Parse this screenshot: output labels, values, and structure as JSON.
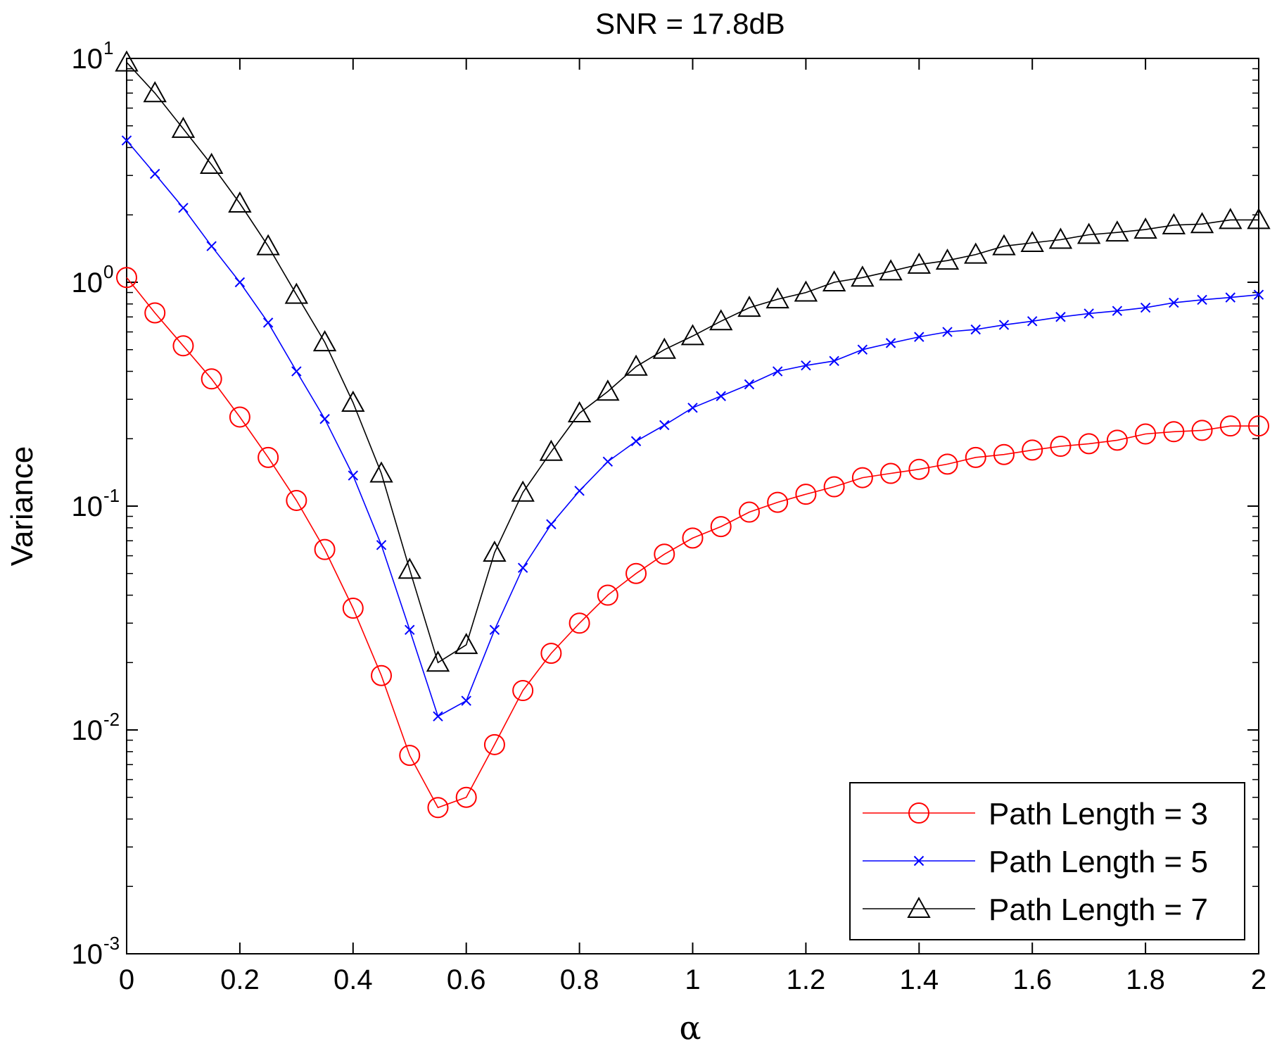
{
  "chart_data": {
    "type": "line",
    "title": "SNR = 17.8dB",
    "xlabel": "α",
    "ylabel": "Variance",
    "xlim": [
      0,
      2
    ],
    "ylim": [
      0.001,
      10
    ],
    "yscale": "log",
    "xticks": [
      "0",
      "0.2",
      "0.4",
      "0.6",
      "0.8",
      "1",
      "1.2",
      "1.4",
      "1.6",
      "1.8",
      "2"
    ],
    "yticks": [
      {
        "base": "10",
        "exp": "-3"
      },
      {
        "base": "10",
        "exp": "-2"
      },
      {
        "base": "10",
        "exp": "-1"
      },
      {
        "base": "10",
        "exp": "0"
      },
      {
        "base": "10",
        "exp": "1"
      }
    ],
    "legend_position": "bottom-right",
    "x": [
      0,
      0.05,
      0.1,
      0.15,
      0.2,
      0.25,
      0.3,
      0.35,
      0.4,
      0.45,
      0.5,
      0.55,
      0.6,
      0.65,
      0.7,
      0.75,
      0.8,
      0.85,
      0.9,
      0.95,
      1.0,
      1.05,
      1.1,
      1.15,
      1.2,
      1.25,
      1.3,
      1.35,
      1.4,
      1.45,
      1.5,
      1.55,
      1.6,
      1.65,
      1.7,
      1.75,
      1.8,
      1.85,
      1.9,
      1.95,
      2.0
    ],
    "series": [
      {
        "name": "Path Length = 3",
        "color": "#ff0000",
        "marker": "circle",
        "values": [
          1.05,
          0.73,
          0.52,
          0.37,
          0.25,
          0.165,
          0.106,
          0.064,
          0.035,
          0.0175,
          0.0077,
          0.0045,
          0.005,
          0.0086,
          0.015,
          0.022,
          0.03,
          0.04,
          0.05,
          0.061,
          0.072,
          0.081,
          0.094,
          0.104,
          0.113,
          0.122,
          0.134,
          0.14,
          0.146,
          0.154,
          0.165,
          0.17,
          0.178,
          0.185,
          0.19,
          0.197,
          0.21,
          0.215,
          0.218,
          0.228,
          0.228
        ]
      },
      {
        "name": "Path Length = 5",
        "color": "#0000ff",
        "marker": "x",
        "values": [
          4.3,
          3.05,
          2.15,
          1.45,
          1.0,
          0.66,
          0.4,
          0.245,
          0.137,
          0.067,
          0.028,
          0.0115,
          0.0135,
          0.028,
          0.053,
          0.083,
          0.117,
          0.158,
          0.195,
          0.23,
          0.275,
          0.31,
          0.35,
          0.4,
          0.425,
          0.445,
          0.5,
          0.535,
          0.57,
          0.6,
          0.615,
          0.645,
          0.67,
          0.7,
          0.725,
          0.745,
          0.77,
          0.81,
          0.835,
          0.855,
          0.88
        ]
      },
      {
        "name": "Path Length = 7",
        "color": "#000000",
        "marker": "triangle",
        "values": [
          9.6,
          7.0,
          4.85,
          3.35,
          2.25,
          1.45,
          0.88,
          0.54,
          0.29,
          0.14,
          0.052,
          0.02,
          0.024,
          0.062,
          0.115,
          0.175,
          0.26,
          0.325,
          0.42,
          0.5,
          0.575,
          0.67,
          0.77,
          0.84,
          0.9,
          1.0,
          1.05,
          1.12,
          1.2,
          1.25,
          1.33,
          1.45,
          1.5,
          1.55,
          1.63,
          1.67,
          1.72,
          1.8,
          1.82,
          1.9,
          1.9
        ]
      }
    ]
  }
}
